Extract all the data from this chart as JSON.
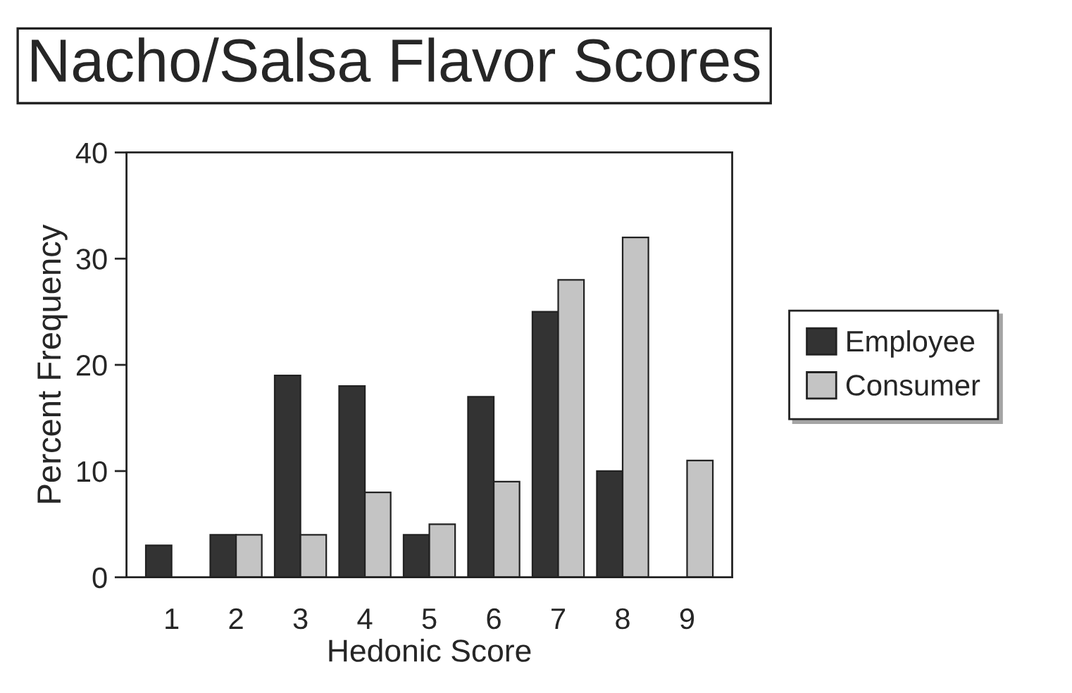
{
  "chart_data": {
    "type": "bar",
    "title": "Nacho/Salsa Flavor Scores",
    "xlabel": "Hedonic Score",
    "ylabel": "Percent Frequency",
    "categories": [
      "1",
      "2",
      "3",
      "4",
      "5",
      "6",
      "7",
      "8",
      "9"
    ],
    "series": [
      {
        "name": "Employee",
        "color": "#333333",
        "values": [
          3,
          4,
          19,
          18,
          4,
          17,
          25,
          10,
          null
        ]
      },
      {
        "name": "Consumer",
        "color": "#c4c4c4",
        "values": [
          null,
          4,
          4,
          8,
          5,
          9,
          28,
          32,
          11
        ]
      }
    ],
    "ylim": [
      0,
      40
    ],
    "yticks": [
      0,
      10,
      20,
      30,
      40
    ],
    "grid": false,
    "legend": "right"
  }
}
